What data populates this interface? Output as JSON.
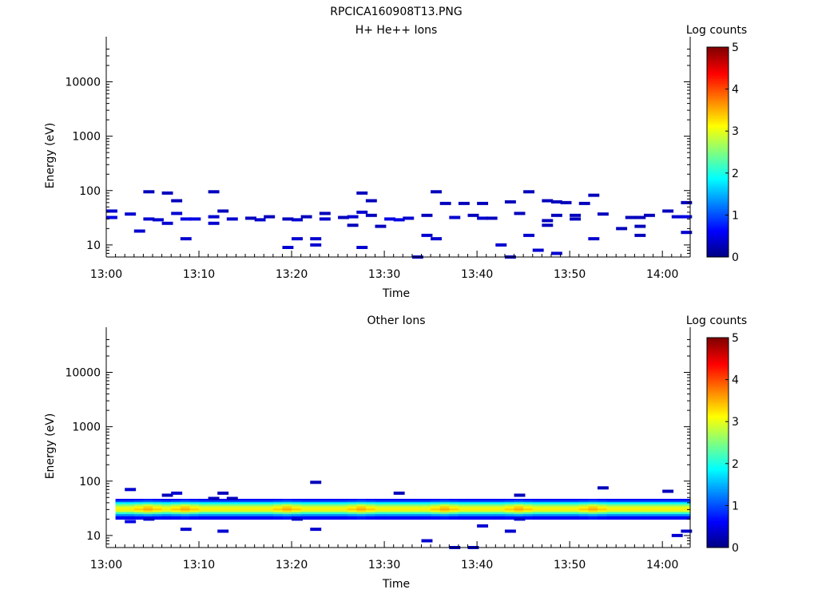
{
  "figure_title": "RPCICA160908T13.PNG",
  "chart_data": [
    {
      "type": "heatmap",
      "title": "H+ He++ Ions",
      "xlabel": "Time",
      "ylabel": "Energy (eV)",
      "x_ticks": [
        "13:00",
        "13:10",
        "13:20",
        "13:30",
        "13:40",
        "13:50",
        "14:00"
      ],
      "x_range": [
        "13:00",
        "14:03"
      ],
      "y_scale": "log",
      "ylim": [
        6,
        45000
      ],
      "y_ticks": [
        "10",
        "100",
        "1000",
        "10000"
      ],
      "colorbar": {
        "label": "Log counts",
        "range": [
          0,
          5
        ],
        "ticks": [
          "0",
          "1",
          "2",
          "3",
          "4",
          "5"
        ]
      },
      "cells": [
        [
          "13:00",
          42,
          0.4
        ],
        [
          "13:00",
          32,
          0.5
        ],
        [
          "13:02",
          37,
          0.4
        ],
        [
          "13:03",
          18,
          0.4
        ],
        [
          "13:04",
          95,
          0.3
        ],
        [
          "13:04",
          30,
          0.4
        ],
        [
          "13:05",
          29,
          0.4
        ],
        [
          "13:06",
          90,
          0.3
        ],
        [
          "13:06",
          25,
          0.4
        ],
        [
          "13:07",
          65,
          0.3
        ],
        [
          "13:07",
          38,
          0.4
        ],
        [
          "13:08",
          30,
          0.5
        ],
        [
          "13:08",
          13,
          0.4
        ],
        [
          "13:09",
          30,
          0.5
        ],
        [
          "13:11",
          95,
          0.3
        ],
        [
          "13:11",
          33,
          0.4
        ],
        [
          "13:11",
          25,
          0.4
        ],
        [
          "13:12",
          42,
          0.3
        ],
        [
          "13:13",
          30,
          0.4
        ],
        [
          "13:15",
          31,
          0.3
        ],
        [
          "13:16",
          29,
          0.4
        ],
        [
          "13:17",
          33,
          0.3
        ],
        [
          "13:19",
          9,
          0.4
        ],
        [
          "13:19",
          30,
          0.3
        ],
        [
          "13:20",
          13,
          0.4
        ],
        [
          "13:20",
          29,
          0.4
        ],
        [
          "13:21",
          33,
          0.3
        ],
        [
          "13:22",
          13,
          0.4
        ],
        [
          "13:22",
          10,
          0.4
        ],
        [
          "13:23",
          38,
          0.3
        ],
        [
          "13:23",
          30,
          0.4
        ],
        [
          "13:25",
          32,
          0.3
        ],
        [
          "13:26",
          23,
          0.3
        ],
        [
          "13:26",
          33,
          0.4
        ],
        [
          "13:27",
          90,
          0.3
        ],
        [
          "13:27",
          40,
          0.4
        ],
        [
          "13:27",
          9,
          0.4
        ],
        [
          "13:28",
          65,
          0.3
        ],
        [
          "13:28",
          35,
          0.3
        ],
        [
          "13:29",
          22,
          0.3
        ],
        [
          "13:30",
          30,
          0.5
        ],
        [
          "13:31",
          29,
          0.5
        ],
        [
          "13:32",
          31,
          0.4
        ],
        [
          "13:33",
          6,
          0.3
        ],
        [
          "13:34",
          15,
          0.4
        ],
        [
          "13:34",
          35,
          0.3
        ],
        [
          "13:35",
          95,
          0.3
        ],
        [
          "13:35",
          13,
          0.4
        ],
        [
          "13:36",
          58,
          0.3
        ],
        [
          "13:37",
          32,
          0.4
        ],
        [
          "13:38",
          58,
          0.3
        ],
        [
          "13:39",
          35,
          0.3
        ],
        [
          "13:40",
          58,
          0.3
        ],
        [
          "13:40",
          31,
          0.4
        ],
        [
          "13:41",
          31,
          0.3
        ],
        [
          "13:42",
          10,
          0.4
        ],
        [
          "13:43",
          62,
          0.3
        ],
        [
          "13:43",
          6,
          0.3
        ],
        [
          "13:44",
          38,
          0.3
        ],
        [
          "13:45",
          95,
          0.3
        ],
        [
          "13:45",
          15,
          0.4
        ],
        [
          "13:46",
          8,
          0.4
        ],
        [
          "13:47",
          65,
          0.3
        ],
        [
          "13:47",
          28,
          0.3
        ],
        [
          "13:47",
          23,
          0.3
        ],
        [
          "13:48",
          62,
          0.3
        ],
        [
          "13:48",
          35,
          0.3
        ],
        [
          "13:48",
          7,
          0.4
        ],
        [
          "13:49",
          60,
          0.3
        ],
        [
          "13:50",
          35,
          0.3
        ],
        [
          "13:50",
          30,
          0.3
        ],
        [
          "13:51",
          58,
          0.3
        ],
        [
          "13:52",
          82,
          0.3
        ],
        [
          "13:52",
          13,
          0.4
        ],
        [
          "13:53",
          37,
          0.3
        ],
        [
          "13:55",
          20,
          0.3
        ],
        [
          "13:56",
          32,
          0.3
        ],
        [
          "13:57",
          32,
          0.3
        ],
        [
          "13:57",
          22,
          0.3
        ],
        [
          "13:57",
          15,
          0.3
        ],
        [
          "13:58",
          35,
          0.3
        ],
        [
          "14:00",
          42,
          0.3
        ],
        [
          "14:01",
          33,
          0.4
        ],
        [
          "14:02",
          60,
          0.3
        ],
        [
          "14:02",
          33,
          0.5
        ],
        [
          "14:02",
          17,
          0.4
        ]
      ]
    },
    {
      "type": "heatmap",
      "title": "Other Ions",
      "xlabel": "Time",
      "ylabel": "Energy (eV)",
      "x_ticks": [
        "13:00",
        "13:10",
        "13:20",
        "13:30",
        "13:40",
        "13:50",
        "14:00"
      ],
      "x_range": [
        "13:00",
        "14:03"
      ],
      "y_scale": "log",
      "ylim": [
        6,
        45000
      ],
      "y_ticks": [
        "10",
        "100",
        "1000",
        "10000"
      ],
      "colorbar": {
        "label": "Log counts",
        "range": [
          0,
          5
        ],
        "ticks": [
          "0",
          "1",
          "2",
          "3",
          "4",
          "5"
        ]
      },
      "band": {
        "x_range": [
          "13:01",
          "14:03"
        ],
        "rows": [
          [
            44,
            0.6
          ],
          [
            41,
            1.0
          ],
          [
            38,
            1.9
          ],
          [
            35,
            2.5
          ],
          [
            32,
            3.0
          ],
          [
            29,
            3.2
          ],
          [
            27,
            2.9
          ],
          [
            25,
            2.1
          ],
          [
            23,
            1.3
          ],
          [
            21,
            0.6
          ]
        ],
        "peaks": [
          "13:04",
          "13:08",
          "13:19",
          "13:27",
          "13:36",
          "13:44",
          "13:52"
        ]
      },
      "cells": [
        [
          "13:02",
          70,
          0.4
        ],
        [
          "13:02",
          18,
          0.5
        ],
        [
          "13:04",
          20,
          0.4
        ],
        [
          "13:06",
          55,
          0.3
        ],
        [
          "13:07",
          60,
          0.4
        ],
        [
          "13:08",
          13,
          0.4
        ],
        [
          "13:11",
          48,
          0.3
        ],
        [
          "13:12",
          60,
          0.3
        ],
        [
          "13:12",
          12,
          0.4
        ],
        [
          "13:13",
          48,
          0.3
        ],
        [
          "13:20",
          20,
          0.4
        ],
        [
          "13:22",
          95,
          0.3
        ],
        [
          "13:22",
          13,
          0.4
        ],
        [
          "13:31",
          60,
          0.3
        ],
        [
          "13:34",
          8,
          0.4
        ],
        [
          "13:37",
          6,
          0.4
        ],
        [
          "13:39",
          6,
          0.4
        ],
        [
          "13:40",
          15,
          0.4
        ],
        [
          "13:43",
          12,
          0.4
        ],
        [
          "13:44",
          20,
          0.4
        ],
        [
          "13:44",
          55,
          0.3
        ],
        [
          "13:53",
          75,
          0.3
        ],
        [
          "14:00",
          65,
          0.3
        ],
        [
          "14:01",
          10,
          0.4
        ],
        [
          "14:02",
          12,
          0.4
        ]
      ]
    }
  ]
}
